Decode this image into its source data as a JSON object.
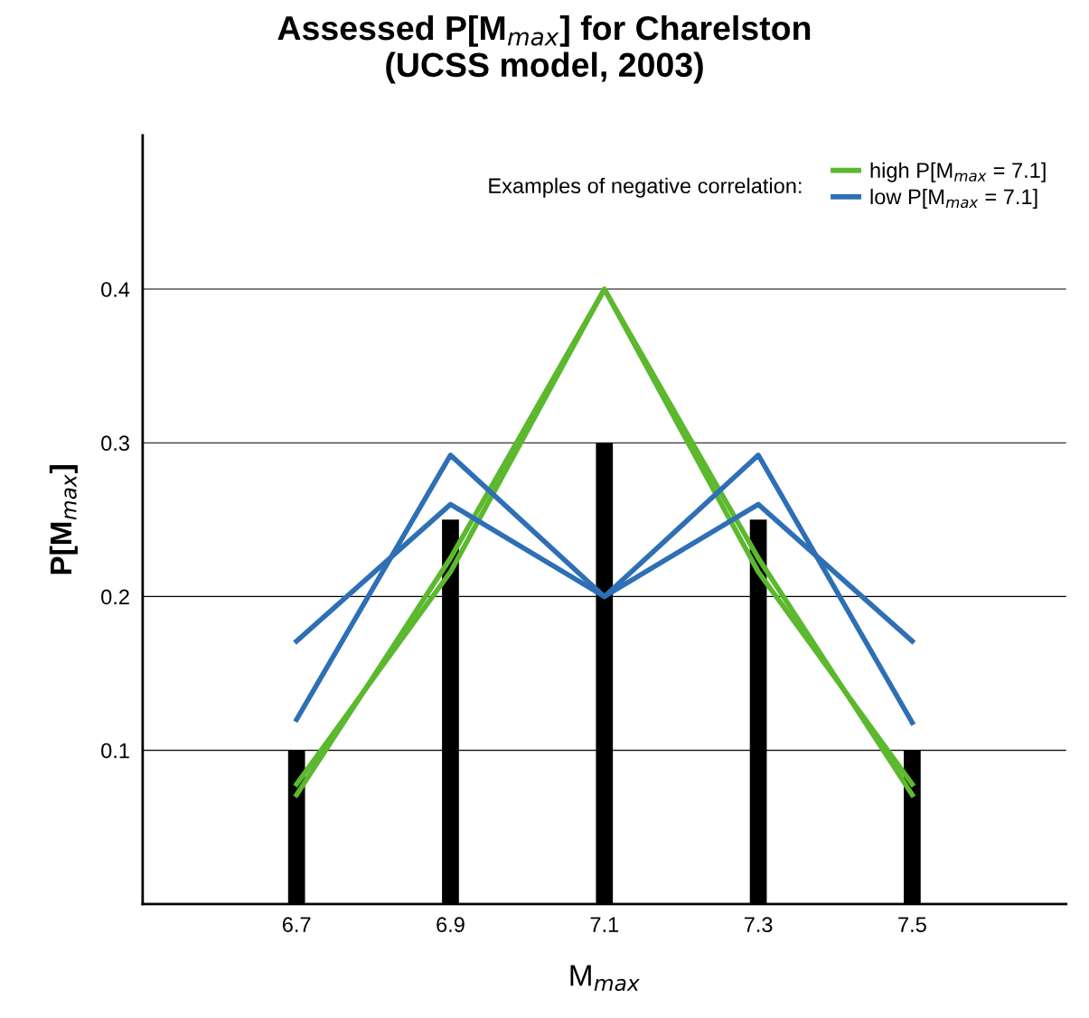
{
  "chart_data": {
    "type": "bar",
    "title": "Assessed P[M$_{max}$] for Charelston\n(UCSS model, 2003)",
    "xlabel": "M$_{max}$",
    "ylabel": "P[M$_{max}$]",
    "legend_title": "Examples of negative correlation:",
    "x": [
      6.7,
      6.9,
      7.1,
      7.3,
      7.5
    ],
    "series": [
      {
        "color": "#000000",
        "values": [
          0.1,
          0.25,
          0.3,
          0.25,
          0.1
        ]
      },
      {
        "type": "line",
        "name": "high P[M$_{max}$ = 7.1]",
        "color": "#5cb82e",
        "values": [
          0.078,
          0.216,
          0.4,
          0.216,
          0.078
        ]
      },
      {
        "type": "line",
        "color": "#5cb82e",
        "values": [
          0.071,
          0.225,
          0.4,
          0.225,
          0.071
        ]
      },
      {
        "type": "line",
        "name": "low P[M$_{max}$ = 7.1]",
        "color": "#2e6fb5",
        "values": [
          0.171,
          0.26,
          0.2,
          0.26,
          0.171
        ]
      },
      {
        "type": "line",
        "color": "#2e6fb5",
        "values": [
          0.12,
          0.292,
          0.2,
          0.292,
          0.118
        ]
      }
    ],
    "xlim": [
      6.5,
      7.7
    ],
    "xticks": [
      6.7,
      6.9,
      7.1,
      7.3,
      7.5
    ],
    "ylim": [
      0,
      0.5
    ],
    "yticks": [
      0.1,
      0.2,
      0.3,
      0.4
    ],
    "grid": "y",
    "legend": "top right"
  }
}
